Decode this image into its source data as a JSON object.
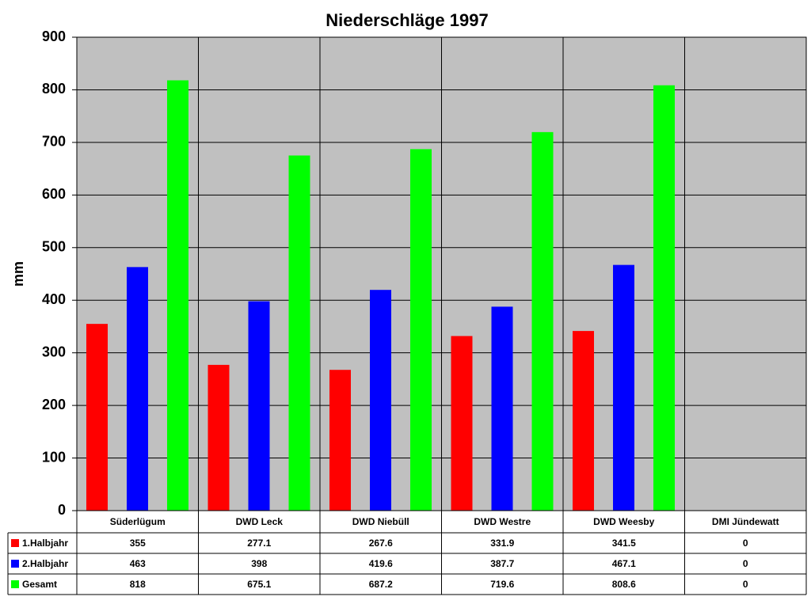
{
  "chart_data": {
    "type": "bar",
    "title": "Niederschläge 1997",
    "y_label": "mm",
    "categories": [
      "Süderlügum",
      "DWD Leck",
      "DWD Niebüll",
      "DWD Westre",
      "DWD Weesby",
      "DMI Jündewatt"
    ],
    "series": [
      {
        "name": "1.Halbjahr",
        "color": "#ff0000",
        "values": [
          355,
          277.1,
          267.6,
          331.9,
          341.5,
          0
        ]
      },
      {
        "name": "2.Halbjahr",
        "color": "#0000ff",
        "values": [
          463,
          398,
          419.6,
          387.7,
          467.1,
          0
        ]
      },
      {
        "name": "Gesamt",
        "color": "#00ff00",
        "values": [
          818,
          675.1,
          687.2,
          719.6,
          808.6,
          0
        ]
      }
    ],
    "ylim": [
      0,
      900
    ],
    "yticks": [
      0,
      100,
      200,
      300,
      400,
      500,
      600,
      700,
      800,
      900
    ],
    "grid": true,
    "plot_background": "#c0c0c0"
  }
}
